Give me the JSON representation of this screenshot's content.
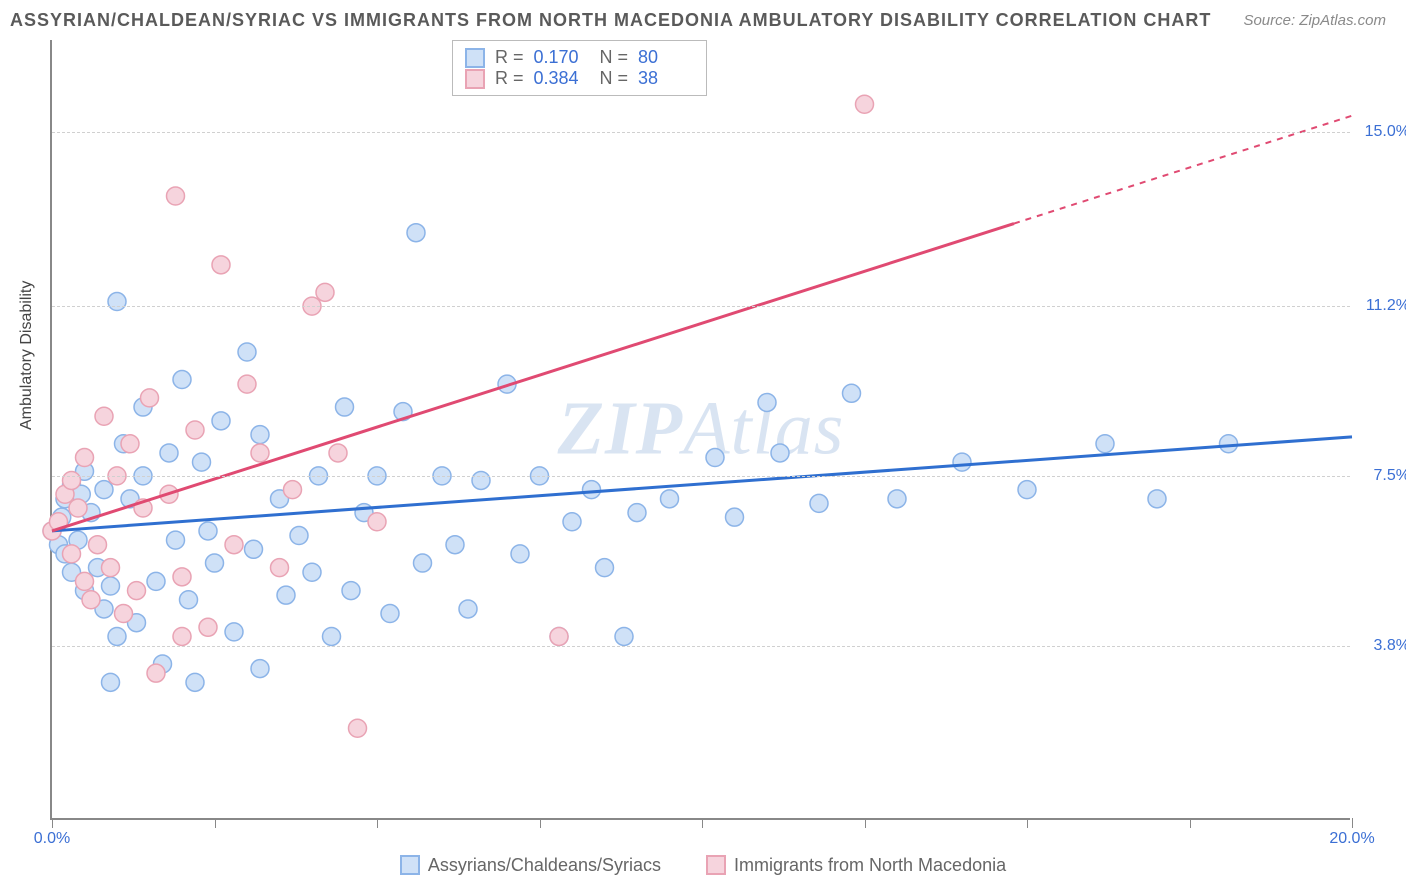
{
  "title": "ASSYRIAN/CHALDEAN/SYRIAC VS IMMIGRANTS FROM NORTH MACEDONIA AMBULATORY DISABILITY CORRELATION CHART",
  "source": "Source: ZipAtlas.com",
  "watermark_a": "ZIP",
  "watermark_b": "Atlas",
  "ylabel": "Ambulatory Disability",
  "xlim": [
    0,
    20
  ],
  "ylim": [
    0,
    17
  ],
  "x_ticks": [
    0,
    2.5,
    5,
    7.5,
    10,
    12.5,
    15,
    17.5,
    20
  ],
  "x_tick_labels": {
    "0": "0.0%",
    "20": "20.0%"
  },
  "y_grid": [
    3.8,
    7.5,
    11.2,
    15.0
  ],
  "y_tick_labels": [
    "3.8%",
    "7.5%",
    "11.2%",
    "15.0%"
  ],
  "series": [
    {
      "name": "Assyrians/Chaldeans/Syriacs",
      "color": "#8cb4e8",
      "fill": "#cfe1f7",
      "line_color": "#2f6fd0",
      "r_value": "0.170",
      "n_value": "80",
      "trend": {
        "x1": 0,
        "y1": 6.3,
        "x2": 20,
        "y2": 8.35
      },
      "points": [
        [
          0,
          6.3
        ],
        [
          0.1,
          6.0
        ],
        [
          0.2,
          5.8
        ],
        [
          0.15,
          6.6
        ],
        [
          0.3,
          5.4
        ],
        [
          0.2,
          7.0
        ],
        [
          0.4,
          6.1
        ],
        [
          0.3,
          7.3
        ],
        [
          0.5,
          5.0
        ],
        [
          0.45,
          7.1
        ],
        [
          0.6,
          6.7
        ],
        [
          0.7,
          5.5
        ],
        [
          0.5,
          7.6
        ],
        [
          0.8,
          4.6
        ],
        [
          0.8,
          7.2
        ],
        [
          0.9,
          5.1
        ],
        [
          1.0,
          11.3
        ],
        [
          1.1,
          8.2
        ],
        [
          1.2,
          7.0
        ],
        [
          1.3,
          4.3
        ],
        [
          1.4,
          7.5
        ],
        [
          1.4,
          9.0
        ],
        [
          1.6,
          5.2
        ],
        [
          1.7,
          3.4
        ],
        [
          1.8,
          8.0
        ],
        [
          1.9,
          6.1
        ],
        [
          2.0,
          9.6
        ],
        [
          2.1,
          4.8
        ],
        [
          2.2,
          3.0
        ],
        [
          2.3,
          7.8
        ],
        [
          2.5,
          5.6
        ],
        [
          2.6,
          8.7
        ],
        [
          2.8,
          4.1
        ],
        [
          3.0,
          10.2
        ],
        [
          3.1,
          5.9
        ],
        [
          3.2,
          8.4
        ],
        [
          3.2,
          3.3
        ],
        [
          3.5,
          7.0
        ],
        [
          3.6,
          4.9
        ],
        [
          3.8,
          6.2
        ],
        [
          4.0,
          5.4
        ],
        [
          4.1,
          7.5
        ],
        [
          4.3,
          4.0
        ],
        [
          4.5,
          9.0
        ],
        [
          4.6,
          5.0
        ],
        [
          4.8,
          6.7
        ],
        [
          5.0,
          7.5
        ],
        [
          5.2,
          4.5
        ],
        [
          5.4,
          8.9
        ],
        [
          5.6,
          12.8
        ],
        [
          5.7,
          5.6
        ],
        [
          6.0,
          7.5
        ],
        [
          6.2,
          6.0
        ],
        [
          6.4,
          4.6
        ],
        [
          6.6,
          7.4
        ],
        [
          7.0,
          9.5
        ],
        [
          7.2,
          5.8
        ],
        [
          7.5,
          7.5
        ],
        [
          7.8,
          4.0
        ],
        [
          8.0,
          6.5
        ],
        [
          8.3,
          7.2
        ],
        [
          8.5,
          5.5
        ],
        [
          8.8,
          4.0
        ],
        [
          9.0,
          6.7
        ],
        [
          9.5,
          7.0
        ],
        [
          10.2,
          7.9
        ],
        [
          10.5,
          6.6
        ],
        [
          11.0,
          9.1
        ],
        [
          11.2,
          8.0
        ],
        [
          11.8,
          6.9
        ],
        [
          12.3,
          9.3
        ],
        [
          13.0,
          7.0
        ],
        [
          14.0,
          7.8
        ],
        [
          15.0,
          7.2
        ],
        [
          16.2,
          8.2
        ],
        [
          17.0,
          7.0
        ],
        [
          18.1,
          8.2
        ],
        [
          0.9,
          3.0
        ],
        [
          1.0,
          4.0
        ],
        [
          2.4,
          6.3
        ]
      ]
    },
    {
      "name": "Immigrants from North Macedonia",
      "color": "#e9a3b4",
      "fill": "#f6d4dd",
      "line_color": "#e04a72",
      "r_value": "0.384",
      "n_value": "38",
      "trend": {
        "x1": 0,
        "y1": 6.3,
        "x2": 14.8,
        "y2": 13.0
      },
      "trend_ext": {
        "x1": 14.8,
        "y1": 13.0,
        "x2": 20,
        "y2": 15.35
      },
      "points": [
        [
          0,
          6.3
        ],
        [
          0.1,
          6.5
        ],
        [
          0.2,
          7.1
        ],
        [
          0.3,
          7.4
        ],
        [
          0.3,
          5.8
        ],
        [
          0.4,
          6.8
        ],
        [
          0.5,
          5.2
        ],
        [
          0.5,
          7.9
        ],
        [
          0.6,
          4.8
        ],
        [
          0.7,
          6.0
        ],
        [
          0.8,
          8.8
        ],
        [
          0.9,
          5.5
        ],
        [
          1.0,
          7.5
        ],
        [
          1.1,
          4.5
        ],
        [
          1.2,
          8.2
        ],
        [
          1.3,
          5.0
        ],
        [
          1.4,
          6.8
        ],
        [
          1.5,
          9.2
        ],
        [
          1.6,
          3.2
        ],
        [
          1.8,
          7.1
        ],
        [
          1.9,
          13.6
        ],
        [
          2.0,
          5.3
        ],
        [
          2.2,
          8.5
        ],
        [
          2.4,
          4.2
        ],
        [
          2.6,
          12.1
        ],
        [
          2.8,
          6.0
        ],
        [
          3.0,
          9.5
        ],
        [
          3.2,
          8.0
        ],
        [
          3.5,
          5.5
        ],
        [
          3.7,
          7.2
        ],
        [
          4.0,
          11.2
        ],
        [
          4.2,
          11.5
        ],
        [
          4.4,
          8.0
        ],
        [
          4.7,
          2.0
        ],
        [
          5.0,
          6.5
        ],
        [
          7.8,
          4.0
        ],
        [
          12.5,
          15.6
        ],
        [
          2.0,
          4.0
        ]
      ]
    }
  ],
  "stat_labels": {
    "r": "R  =",
    "n": "N  ="
  },
  "bottom_legend": [
    "Assyrians/Chaldeans/Syriacs",
    "Immigrants from North Macedonia"
  ]
}
